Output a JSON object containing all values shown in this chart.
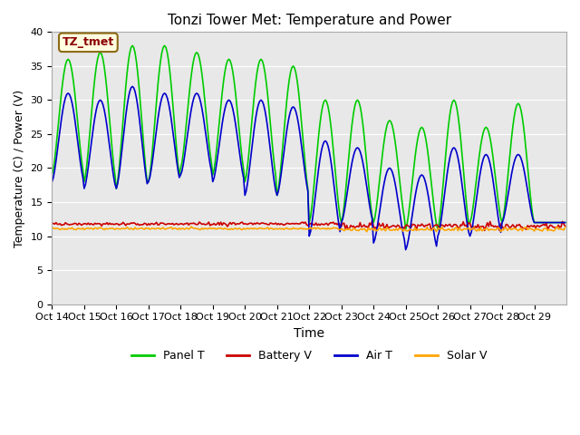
{
  "title": "Tonzi Tower Met: Temperature and Power",
  "xlabel": "Time",
  "ylabel": "Temperature (C) / Power (V)",
  "ylim": [
    0,
    40
  ],
  "yticks": [
    0,
    5,
    10,
    15,
    20,
    25,
    30,
    35,
    40
  ],
  "xtick_labels": [
    "Oct 14",
    "Oct 15",
    "Oct 16",
    "Oct 17",
    "Oct 18",
    "Oct 19",
    "Oct 20",
    "Oct 21",
    "Oct 22",
    "Oct 23",
    "Oct 24",
    "Oct 25",
    "Oct 26",
    "Oct 27",
    "Oct 28",
    "Oct 29"
  ],
  "annotation_text": "TZ_tmet",
  "annotation_color": "#8B0000",
  "annotation_bg": "#FFFFE0",
  "legend_entries": [
    "Panel T",
    "Battery V",
    "Air T",
    "Solar V"
  ],
  "legend_colors": [
    "#00CC00",
    "#CC0000",
    "#0000CC",
    "#FFA500"
  ],
  "bg_color": "#E8E8E8",
  "panel_T_color": "#00CC00",
  "battery_V_color": "#CC0000",
  "air_T_color": "#0000CC",
  "solar_V_color": "#FFA500",
  "panel_peaks": [
    36,
    37,
    38,
    38,
    37,
    36,
    36,
    35,
    30,
    30,
    27,
    26,
    30,
    26,
    29.5,
    12
  ],
  "panel_mins": [
    19,
    18,
    17,
    18,
    20,
    19,
    18,
    16,
    12,
    12,
    12,
    11,
    11,
    12,
    12,
    12
  ],
  "air_peaks": [
    31,
    30,
    32,
    31,
    31,
    30,
    30,
    29,
    24,
    23,
    20,
    19,
    23,
    22,
    22,
    12
  ],
  "air_mins": [
    18,
    17,
    17,
    18,
    19,
    18,
    16,
    16,
    10,
    12,
    9,
    8,
    10,
    10,
    12,
    12
  ]
}
